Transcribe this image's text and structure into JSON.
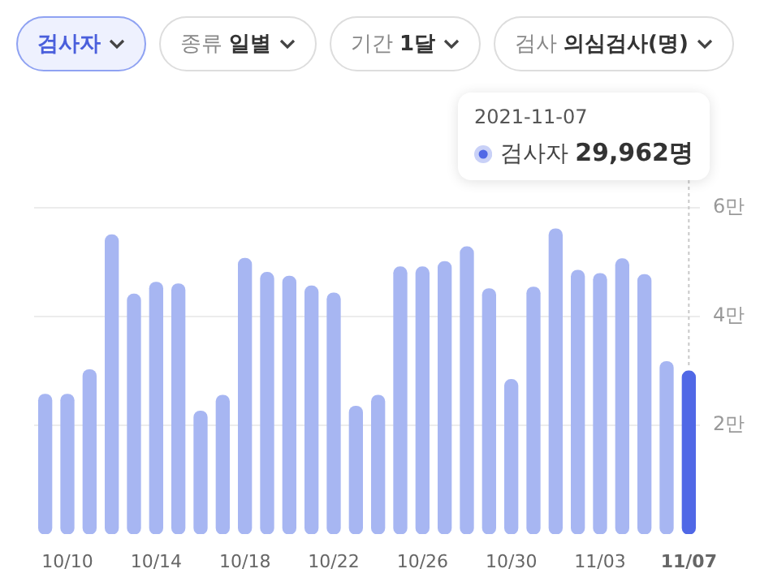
{
  "chart_data": {
    "type": "bar",
    "categories": [
      null,
      "10/10",
      null,
      null,
      null,
      "10/14",
      null,
      null,
      null,
      "10/18",
      null,
      null,
      null,
      "10/22",
      null,
      null,
      null,
      "10/26",
      null,
      null,
      null,
      "10/30",
      null,
      null,
      null,
      "11/03",
      null,
      null,
      null,
      "11/07"
    ],
    "values": [
      2.57,
      2.57,
      3.02,
      5.5,
      4.41,
      4.63,
      4.6,
      2.26,
      2.55,
      5.07,
      4.81,
      4.74,
      4.56,
      4.43,
      2.35,
      2.55,
      4.91,
      4.91,
      5.01,
      5.28,
      4.51,
      2.84,
      4.54,
      5.61,
      4.85,
      4.79,
      5.06,
      4.77,
      3.17,
      2.9962
    ],
    "colors": [
      "#a7b6f2",
      "#a7b6f2",
      "#a7b6f2",
      "#a7b6f2",
      "#a7b6f2",
      "#a7b6f2",
      "#a7b6f2",
      "#a7b6f2",
      "#a7b6f2",
      "#a7b6f2",
      "#a7b6f2",
      "#a7b6f2",
      "#a7b6f2",
      "#a7b6f2",
      "#a7b6f2",
      "#a7b6f2",
      "#a7b6f2",
      "#a7b6f2",
      "#a7b6f2",
      "#a7b6f2",
      "#a7b6f2",
      "#a7b6f2",
      "#a7b6f2",
      "#a7b6f2",
      "#a7b6f2",
      "#a7b6f2",
      "#a7b6f2",
      "#a7b6f2",
      "#a7b6f2",
      "#5068e6"
    ],
    "ylim": [
      0,
      6
    ],
    "yticks": [
      {
        "value": 2,
        "label": "2만"
      },
      {
        "value": 4,
        "label": "4만"
      },
      {
        "value": 6,
        "label": "6만"
      }
    ],
    "grid": "y",
    "annotations": [
      "검사자",
      "종류 일별",
      "기간 1달",
      "검사 의심검사(명)",
      "2021-11-07",
      {
        "text": "검사자 29,962명",
        "x": "11/07",
        "y": 2.9962
      }
    ]
  }
}
